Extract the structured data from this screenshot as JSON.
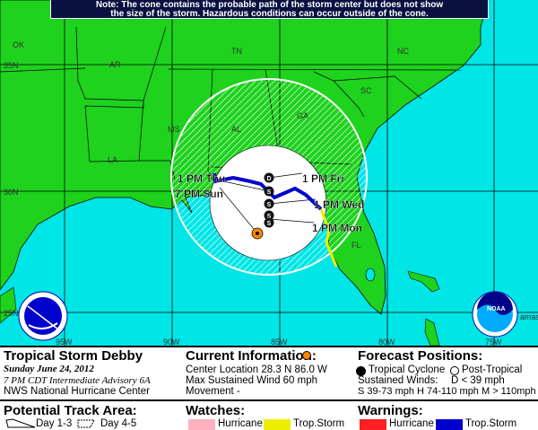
{
  "banner": {
    "line1": "Note: The cone contains the probable path of the storm center but does not show",
    "line2": "the size of the storm. Hazardous conditions can occur outside of the cone."
  },
  "map": {
    "states": [
      "OK",
      "AR",
      "TN",
      "NC",
      "SC",
      "GA",
      "AL",
      "MS",
      "LA",
      "FL"
    ],
    "lat_labels": [
      "35N",
      "30N",
      "25N"
    ],
    "lon_labels": [
      "95W",
      "90W",
      "85W",
      "80W",
      "75W"
    ],
    "place_fragment": "amas",
    "track_labels": [
      "1 PM Fri",
      "1 PM Wed",
      "1 PM Mon",
      "1 PM Thu",
      "7 PM Sun"
    ],
    "forecast_points": [
      "D",
      "S",
      "S",
      "S",
      "S"
    ],
    "colors": {
      "land": "#1ed21e",
      "water": "#00e6e6",
      "cone": "#ffffff",
      "track_warning_ts": "#0000cc",
      "watch_ts": "#eeee00",
      "current": "#ff8800"
    }
  },
  "legend": {
    "storm_name": "Tropical Storm Debby",
    "date": "Sunday   June 24, 2012",
    "advisory": "7 PM CDT Intermediate Advisory 6A",
    "center": "NWS National Hurricane Center",
    "current_info": {
      "title": "Current Information:",
      "location": "Center Location 28.3 N  86.0 W",
      "wind": "Max Sustained Wind  60 mph",
      "movement": "Movement  -"
    },
    "forecast": {
      "title": "Forecast Positions:",
      "tropical": "Tropical Cyclone",
      "post_tropical": "Post-Tropical",
      "winds_label": "Sustained Winds:",
      "d": "D  < 39 mph",
      "shm": "S  39-73 mph  H  74-110 mph  M  > 110mph"
    },
    "track_area": {
      "title": "Potential Track Area:",
      "day13": "Day 1-3",
      "day45": "Day 4-5"
    },
    "watches": {
      "title": "Watches:",
      "hurricane": "Hurricane",
      "ts": "Trop.Storm",
      "hurricane_color": "#ffb0c0",
      "ts_color": "#eeee00"
    },
    "warnings": {
      "title": "Warnings:",
      "hurricane": "Hurricane",
      "ts": "Trop.Storm",
      "hurricane_color": "#ff2020",
      "ts_color": "#0000cc"
    }
  }
}
